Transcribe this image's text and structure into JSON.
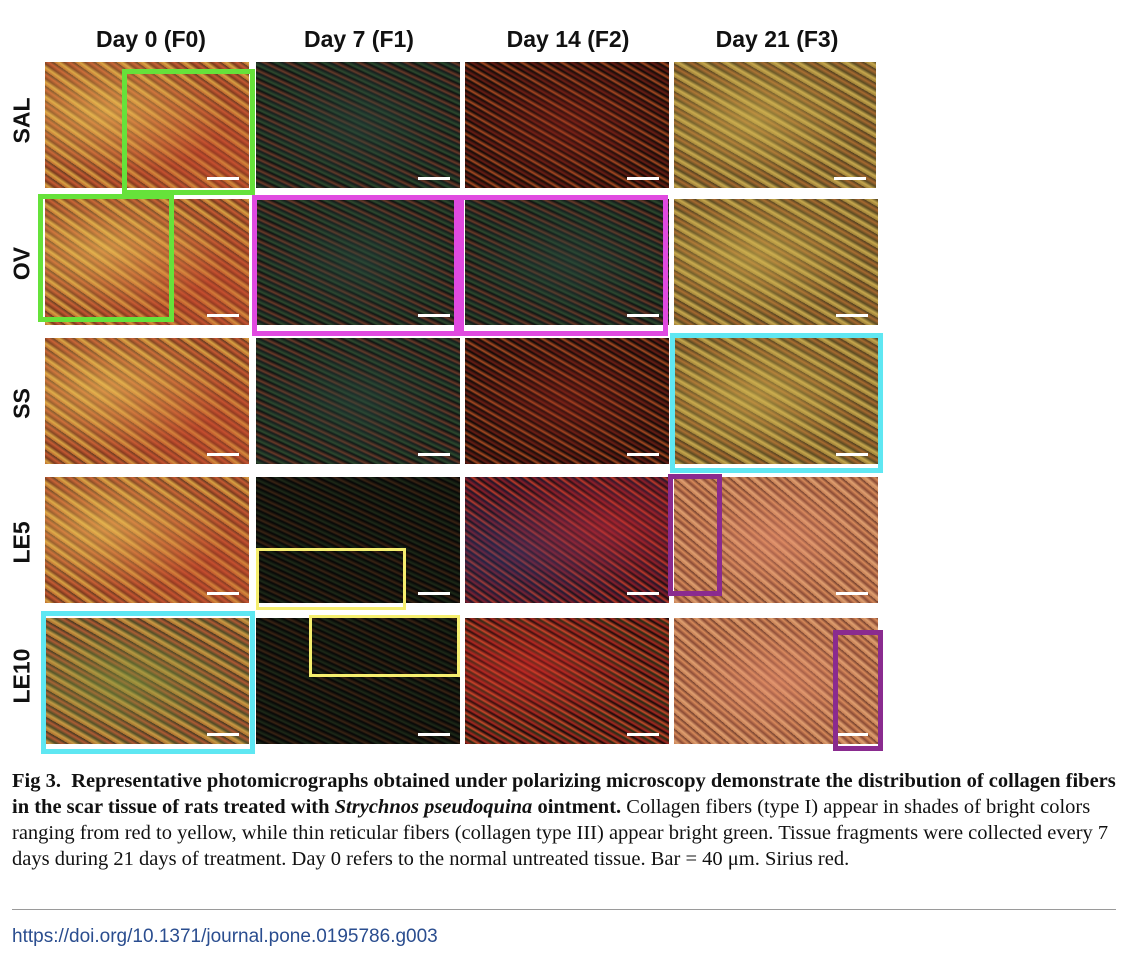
{
  "figure": {
    "column_headers": [
      "Day 0 (F0)",
      "Day 7 (F1)",
      "Day 14 (F2)",
      "Day 21 (F3)"
    ],
    "row_labels": [
      "SAL",
      "OV",
      "SS",
      "LE5",
      "LE10"
    ],
    "panel_tones": [
      [
        "warm",
        "dark-mixed",
        "dark-red",
        "yellow-olive"
      ],
      [
        "warm",
        "dark-mixed",
        "dark-mixed",
        "yellow-olive"
      ],
      [
        "warm",
        "dark-mixed",
        "dark-red",
        "yellow-olive"
      ],
      [
        "warm",
        "very-dark",
        "red-blue",
        "pink-orange"
      ],
      [
        "warm-green",
        "very-dark",
        "red-green",
        "pink-orange"
      ]
    ],
    "highlight_colors": {
      "green": "#66e23a",
      "magenta": "#e04ae0",
      "cyan": "#5fe7f2",
      "purple": "#8a2b8f",
      "yellow": "#f5ee6e"
    }
  },
  "caption": {
    "label": "Fig 3.",
    "title_part1": "Representative photomicrographs obtained under polarizing microscopy demonstrate the distribution of collagen fibers in the scar tissue of rats treated with",
    "species": "Strychnos pseudoquina",
    "title_part2": "ointment.",
    "body": "Collagen fibers (type I) appear in shades of bright colors ranging from red to yellow, while thin reticular fibers (collagen type III) appear bright green. Tissue fragments were collected every 7 days during 21 days of treatment. Day 0 refers to the normal untreated tissue. Bar = 40 μm. Sirius red."
  },
  "doi": "https://doi.org/10.1371/journal.pone.0195786.g003"
}
